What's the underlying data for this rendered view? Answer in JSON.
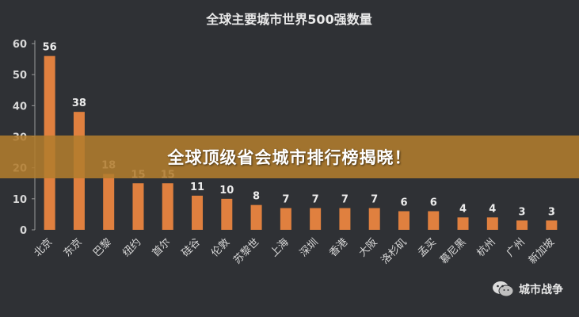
{
  "chart_data": {
    "type": "bar",
    "title": "全球主要城市世界500强数量",
    "categories": [
      "北京",
      "东京",
      "巴黎",
      "纽约",
      "首尔",
      "硅谷",
      "伦敦",
      "苏黎世",
      "上海",
      "深圳",
      "香港",
      "大阪",
      "洛杉矶",
      "孟买",
      "慕尼黑",
      "杭州",
      "广州",
      "新加坡"
    ],
    "values": [
      56,
      38,
      18,
      15,
      15,
      11,
      10,
      8,
      7,
      7,
      7,
      7,
      6,
      6,
      4,
      4,
      3,
      3
    ],
    "yticks": [
      "0",
      "10",
      "20",
      "30",
      "40",
      "50",
      "60"
    ],
    "ylim": [
      0,
      60
    ],
    "xlabel": "",
    "ylabel": "",
    "grid": false,
    "bar_color": "#e0803f"
  },
  "banner": {
    "text": "全球顶级省会城市排行榜揭晓！"
  },
  "watermark": {
    "text": "城市战争",
    "icon": "wechat-icon"
  }
}
